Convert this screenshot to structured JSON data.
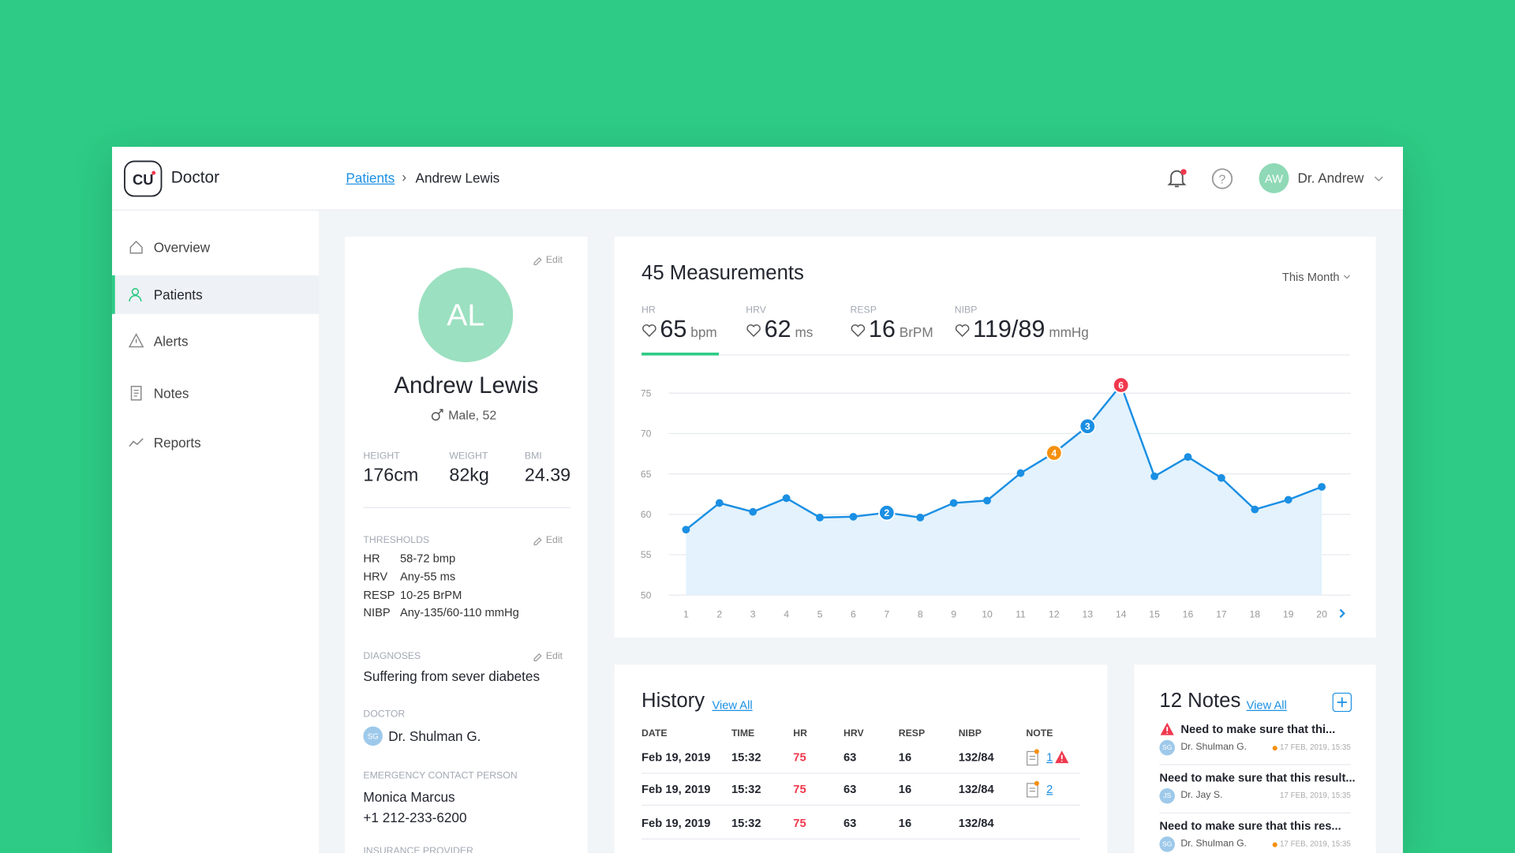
{
  "header": {
    "app": "Doctor",
    "breadcrumb": [
      "Patients",
      "Andrew Lewis"
    ],
    "user_initials": "AW",
    "user": "Dr. Andrew"
  },
  "sidebar": [
    "Overview",
    "Patients",
    "Alerts",
    "Notes",
    "Reports"
  ],
  "profile": {
    "edit": "Edit",
    "initials": "AL",
    "name": "Andrew Lewis",
    "gender_age": "Male, 52",
    "stats": [
      {
        "label": "HEIGHT",
        "value": "176cm"
      },
      {
        "label": "WEIGHT",
        "value": "82kg"
      },
      {
        "label": "BMI",
        "value": "24.39"
      }
    ],
    "thresholds_title": "THRESHOLDS",
    "thresholds": [
      [
        "HR",
        "58-72 bmp"
      ],
      [
        "HRV",
        "Any-55 ms"
      ],
      [
        "RESP",
        "10-25 BrPM"
      ],
      [
        "NIBP",
        "Any-135/60-110 mmHg"
      ]
    ],
    "diagnoses_title": "DIAGNOSES",
    "diagnoses": "Suffering from sever diabetes",
    "doctor_title": "DOCTOR",
    "doctor_initials": "SG",
    "doctor": "Dr. Shulman G.",
    "contact_title": "EMERGENCY CONTACT PERSON",
    "contact_name": "Monica Marcus",
    "contact_phone": "+1 212-233-6200",
    "insurance_title": "INSURANCE PROVIDER"
  },
  "measurements": {
    "title": "45 Measurements",
    "period": "This Month",
    "metrics": [
      {
        "label": "HR",
        "value": "65",
        "unit": "bpm"
      },
      {
        "label": "HRV",
        "value": "62",
        "unit": "ms"
      },
      {
        "label": "RESP",
        "value": "16",
        "unit": "BrPM"
      },
      {
        "label": "NIBP",
        "value": "119/89",
        "unit": "mmHg"
      }
    ]
  },
  "chart_data": {
    "type": "area",
    "categories": [
      "1",
      "2",
      "3",
      "4",
      "5",
      "6",
      "7",
      "8",
      "9",
      "10",
      "11",
      "12",
      "13",
      "14",
      "15",
      "16",
      "17",
      "18",
      "19",
      "20"
    ],
    "values": [
      58.1,
      61.4,
      60.3,
      62,
      59.6,
      59.7,
      60.2,
      59.6,
      61.4,
      61.7,
      65.1,
      67.6,
      70.9,
      76,
      64.7,
      67.1,
      64.5,
      60.6,
      61.8,
      63.4
    ],
    "color": "#1a8fe3",
    "ylim": [
      50,
      75
    ],
    "yticks": [
      50,
      55,
      60,
      65,
      70,
      75
    ],
    "grid": true,
    "markers": [
      {
        "category": "7",
        "label": "2",
        "color": "#1a8fe3"
      },
      {
        "category": "12",
        "label": "4",
        "color": "#f5900f"
      },
      {
        "category": "13",
        "label": "3",
        "color": "#1a8fe3"
      },
      {
        "category": "14",
        "label": "6",
        "color": "#f0384e"
      }
    ]
  },
  "history": {
    "title": "History",
    "link": "View All",
    "columns": [
      "DATE",
      "TIME",
      "HR",
      "HRV",
      "RESP",
      "NIBP",
      "NOTE"
    ],
    "rows": [
      {
        "cells": [
          "Feb 19, 2019",
          "15:32",
          "75",
          "63",
          "16",
          "132/84"
        ],
        "note": "1"
      },
      {
        "cells": [
          "Feb 19, 2019",
          "15:32",
          "75",
          "63",
          "16",
          "132/84"
        ],
        "note": "2"
      },
      {
        "cells": [
          "Feb 19, 2019",
          "15:32",
          "75",
          "63",
          "16",
          "132/84"
        ]
      }
    ]
  },
  "notes": {
    "title": "12 Notes",
    "link": "View All",
    "items": [
      {
        "text": "Need to make sure that thi...",
        "initials": "SG",
        "author": "Dr. Shulman G.",
        "date": "17 FEB, 2019, 15:35"
      },
      {
        "text": "Need to make sure that this result...",
        "initials": "JS",
        "author": "Dr. Jay S.",
        "date": "17 FEB, 2019, 15:35"
      },
      {
        "text": "Need to make sure that this res...",
        "initials": "SG",
        "author": "Dr. Shulman G.",
        "date": "17 FEB, 2019, 15:35"
      }
    ]
  }
}
